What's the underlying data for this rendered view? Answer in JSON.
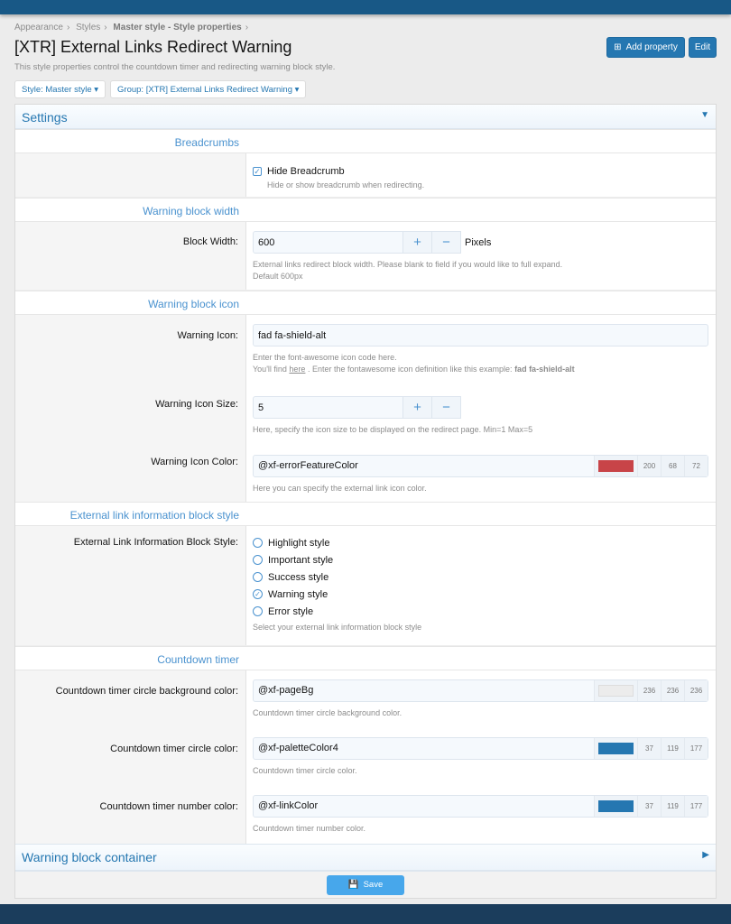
{
  "breadcrumbs": [
    "Appearance",
    "Styles",
    "Master style - Style properties"
  ],
  "title": "[XTR] External Links Redirect Warning",
  "description": "This style properties control the countdown timer and redirecting warning block style.",
  "buttons": {
    "add_property": "Add property",
    "edit": "Edit",
    "save": "Save"
  },
  "filters": {
    "style": "Style: Master style",
    "group": "Group: [XTR] External Links Redirect Warning"
  },
  "settings_title": "Settings",
  "sections": {
    "breadcrumbs": {
      "heading": "Breadcrumbs",
      "checkbox_label": "Hide Breadcrumb",
      "checked": true,
      "hint": "Hide or show breadcrumb when redirecting."
    },
    "width": {
      "heading": "Warning block width",
      "label": "Block Width:",
      "value": "600",
      "unit": "Pixels",
      "hint1": "External links redirect block width. Please blank to field if you would like to full expand.",
      "hint2": "Default 600px"
    },
    "icon": {
      "heading": "Warning block icon",
      "icon_label": "Warning Icon:",
      "icon_value": "fad fa-shield-alt",
      "icon_hint1": "Enter the font-awesome icon code here.",
      "icon_hint2a": "You'll find ",
      "icon_hint_link": "here",
      "icon_hint2b": " . Enter the fontawesome icon definition like this example: ",
      "icon_hint_bold": "fad fa-shield-alt",
      "size_label": "Warning Icon Size:",
      "size_value": "5",
      "size_hint": "Here, specify the icon size to be displayed on the redirect page. Min=1 Max=5",
      "color_label": "Warning Icon Color:",
      "color_value": "@xf-errorFeatureColor",
      "color_hex": "#c84448",
      "rgb": [
        "200",
        "68",
        "72"
      ],
      "color_hint": "Here you can specify the external link icon color."
    },
    "info": {
      "heading": "External link information block style",
      "label": "External Link Information Block Style:",
      "options": [
        "Highlight style",
        "Important style",
        "Success style",
        "Warning style",
        "Error style"
      ],
      "selected": "Warning style",
      "hint": "Select your external link information block style"
    },
    "countdown": {
      "heading": "Countdown timer",
      "rows": [
        {
          "label": "Countdown timer circle background color:",
          "value": "@xf-pageBg",
          "hex": "#ececec",
          "rgb": [
            "236",
            "236",
            "236"
          ],
          "hint": "Countdown timer circle background color."
        },
        {
          "label": "Countdown timer circle color:",
          "value": "@xf-paletteColor4",
          "hex": "#2577b1",
          "rgb": [
            "37",
            "119",
            "177"
          ],
          "hint": "Countdown timer circle color."
        },
        {
          "label": "Countdown timer number color:",
          "value": "@xf-linkColor",
          "hex": "#2577b1",
          "rgb": [
            "37",
            "119",
            "177"
          ],
          "hint": "Countdown timer number color."
        }
      ]
    }
  },
  "collapsed_title": "Warning block container"
}
